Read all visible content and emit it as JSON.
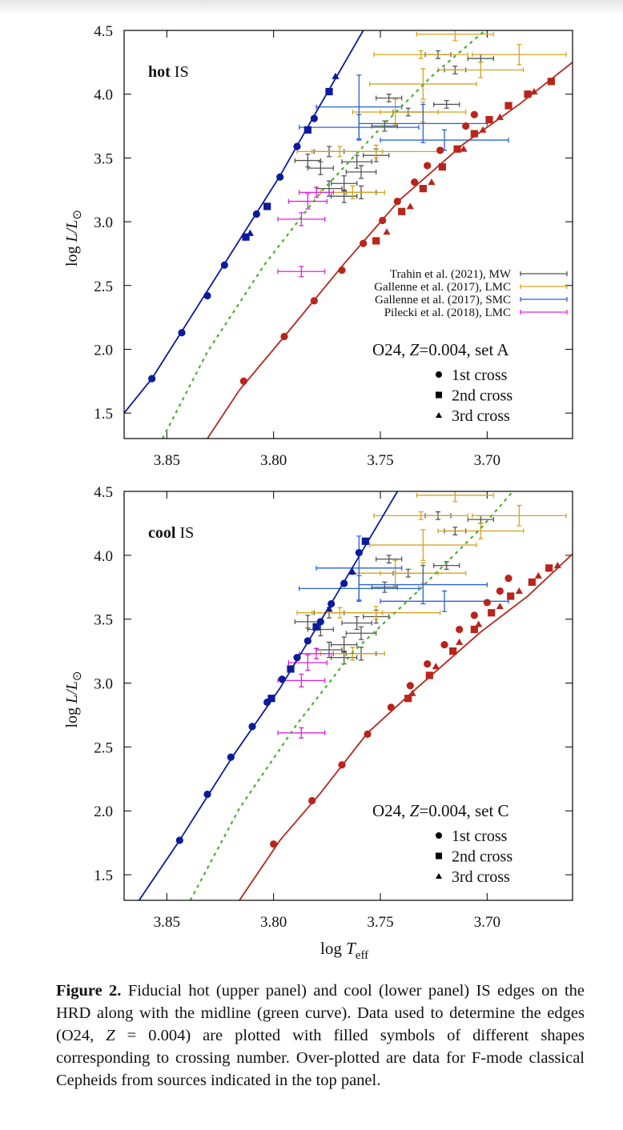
{
  "chart_data": [
    {
      "type": "scatter",
      "panel_label": [
        "hot",
        "IS"
      ],
      "annotation": [
        "O24, ",
        "Z",
        "=0.004, set A"
      ],
      "ylabel": [
        "log ",
        "L",
        "/L",
        "⊙"
      ],
      "xlim": [
        3.87,
        3.66
      ],
      "ylim": [
        1.3,
        4.5
      ],
      "xticks": [
        3.85,
        {
          "value": 3.8,
          "label": "3.80"
        },
        3.75,
        {
          "value": 3.7,
          "label": "3.70"
        }
      ],
      "yticks": [
        {
          "value": 1.5,
          "label": "1.5"
        },
        {
          "value": 2,
          "label": "2.0"
        },
        2.5,
        {
          "value": 3,
          "label": "3.0"
        },
        3.5,
        {
          "value": 4,
          "label": "4.0"
        },
        4.5
      ],
      "markers": [
        {
          "label": "1st cross",
          "shape": "circle"
        },
        {
          "label": "2nd cross",
          "shape": "square"
        },
        {
          "label": "3rd cross",
          "shape": "triangle"
        }
      ],
      "lines": [
        {
          "color": "#0c1a9c",
          "style": "solid",
          "x": [
            3.87,
            3.857,
            3.823,
            3.797,
            3.778,
            3.758
          ],
          "y": [
            1.5,
            1.77,
            2.67,
            3.36,
            3.92,
            4.5
          ]
        },
        {
          "color": "#4caf2a",
          "style": "dotted",
          "x": [
            3.852,
            3.831,
            3.804,
            3.778,
            3.748,
            3.726,
            3.701
          ],
          "y": [
            1.3,
            1.98,
            2.67,
            3.23,
            3.77,
            4.14,
            4.5
          ]
        },
        {
          "color": "#b5281c",
          "style": "solid",
          "x": [
            3.831,
            3.816,
            3.795,
            3.767,
            3.741,
            3.711,
            3.685,
            3.66
          ],
          "y": [
            1.3,
            1.68,
            2.1,
            2.67,
            3.17,
            3.61,
            3.92,
            4.25
          ]
        }
      ],
      "points": [
        {
          "color": "#0c1a9c",
          "shape": "circle",
          "x": [
            3.857,
            3.843,
            3.831,
            3.823,
            3.808,
            3.797,
            3.789,
            3.781
          ],
          "y": [
            1.77,
            2.13,
            2.42,
            2.66,
            3.06,
            3.35,
            3.59,
            3.81
          ]
        },
        {
          "color": "#0c1a9c",
          "shape": "square",
          "x": [
            3.813,
            3.803,
            3.784,
            3.774
          ],
          "y": [
            2.88,
            3.12,
            3.72,
            4.02
          ]
        },
        {
          "color": "#0c1a9c",
          "shape": "triangle",
          "x": [
            3.811,
            3.771
          ],
          "y": [
            2.91,
            4.14
          ]
        },
        {
          "color": "#b8251c",
          "shape": "circle",
          "x": [
            3.814,
            3.795,
            3.781,
            3.768,
            3.758,
            3.749,
            3.742,
            3.734,
            3.728,
            3.722,
            3.71,
            3.706
          ],
          "y": [
            1.75,
            2.1,
            2.38,
            2.62,
            2.83,
            3.01,
            3.16,
            3.31,
            3.44,
            3.56,
            3.75,
            3.84
          ]
        },
        {
          "color": "#b8251c",
          "shape": "square",
          "x": [
            3.752,
            3.74,
            3.73,
            3.721,
            3.714,
            3.706,
            3.699,
            3.69,
            3.681,
            3.67
          ],
          "y": [
            2.85,
            3.08,
            3.26,
            3.43,
            3.57,
            3.69,
            3.8,
            3.91,
            4.0,
            4.1
          ]
        },
        {
          "color": "#b8251c",
          "shape": "triangle",
          "x": [
            3.747,
            3.736,
            3.726,
            3.711,
            3.702,
            3.694,
            3.678
          ],
          "y": [
            2.92,
            3.12,
            3.31,
            3.57,
            3.72,
            3.82,
            4.02
          ]
        }
      ],
      "errorbars": [
        {
          "name": "Trahin et al. (2021), MW",
          "color": "#555555",
          "x": [
            3.723,
            3.703,
            3.715,
            3.746,
            3.737,
            3.719,
            3.748,
            3.774,
            3.752,
            3.778,
            3.759,
            3.767,
            3.774,
            3.759,
            3.767,
            3.761,
            3.784
          ],
          "y": [
            4.31,
            4.28,
            4.19,
            3.97,
            3.86,
            3.92,
            3.75,
            3.55,
            3.52,
            3.42,
            3.39,
            3.3,
            3.26,
            3.23,
            3.2,
            3.47,
            3.48
          ],
          "xerr": [
            0.006,
            0.006,
            0.005,
            0.006,
            0.007,
            0.006,
            0.006,
            0.007,
            0.006,
            0.006,
            0.007,
            0.006,
            0.006,
            0.007,
            0.006,
            0.007,
            0.006
          ],
          "yerr": [
            0.03,
            0.03,
            0.03,
            0.03,
            0.03,
            0.03,
            0.04,
            0.04,
            0.05,
            0.05,
            0.05,
            0.06,
            0.06,
            0.05,
            0.05,
            0.05,
            0.05
          ]
        },
        {
          "name": "Gallenne et al. (2017), LMC",
          "color": "#d4a520",
          "x": [
            3.715,
            3.731,
            3.685,
            3.703,
            3.73,
            3.743,
            3.752,
            3.769,
            3.763,
            3.73
          ],
          "y": [
            4.47,
            4.31,
            4.31,
            4.19,
            4.08,
            3.86,
            3.55,
            3.55,
            3.23,
            3.86
          ],
          "xerr": [
            0.018,
            0.022,
            0.022,
            0.02,
            0.025,
            0.02,
            0.03,
            0.02,
            0.015,
            0.02
          ],
          "yerr": [
            0.05,
            0.03,
            0.08,
            0.06,
            0.12,
            0.1,
            0.05,
            0.04,
            0.05,
            0.08
          ]
        },
        {
          "name": "Gallenne et al. (2017), SMC",
          "color": "#2a62d8",
          "x": [
            3.76,
            3.76,
            3.72,
            3.73
          ],
          "y": [
            3.9,
            3.74,
            3.64,
            3.77
          ],
          "xerr": [
            0.02,
            0.028,
            0.03,
            0.03
          ],
          "yerr": [
            0.25,
            0.1,
            0.08,
            0.15
          ]
        },
        {
          "name": "Pilecki et al. (2018), LMC",
          "color": "#e020e0",
          "x": [
            3.787,
            3.787,
            3.784,
            3.78
          ],
          "y": [
            3.02,
            2.61,
            3.16,
            3.23
          ],
          "xerr": [
            0.011,
            0.011,
            0.009,
            0.008
          ],
          "yerr": [
            0.05,
            0.04,
            0.06,
            0.04
          ]
        }
      ]
    },
    {
      "type": "scatter",
      "panel_label": [
        "cool",
        "IS"
      ],
      "annotation": [
        "O24, ",
        "Z",
        "=0.004, set C"
      ],
      "ylabel": [
        "log ",
        "L",
        "/L",
        "⊙"
      ],
      "xlabel": [
        "log ",
        "T",
        "eff"
      ],
      "xlim": [
        3.87,
        3.66
      ],
      "ylim": [
        1.3,
        4.5
      ],
      "xticks": [
        3.85,
        {
          "value": 3.8,
          "label": "3.80"
        },
        3.75,
        {
          "value": 3.7,
          "label": "3.70"
        }
      ],
      "yticks": [
        {
          "value": 1.5,
          "label": "1.5"
        },
        {
          "value": 2,
          "label": "2.0"
        },
        2.5,
        {
          "value": 3,
          "label": "3.0"
        },
        3.5,
        {
          "value": 4,
          "label": "4.0"
        },
        4.5
      ],
      "markers": [
        {
          "label": "1st cross",
          "shape": "circle"
        },
        {
          "label": "2nd cross",
          "shape": "square"
        },
        {
          "label": "3rd cross",
          "shape": "triangle"
        }
      ],
      "lines": [
        {
          "color": "#0c1a9c",
          "style": "solid",
          "x": [
            3.863,
            3.844,
            3.819,
            3.797,
            3.771,
            3.742
          ],
          "y": [
            1.3,
            1.77,
            2.43,
            2.96,
            3.68,
            4.5
          ]
        },
        {
          "color": "#4caf2a",
          "style": "dotted",
          "x": [
            3.839,
            3.816,
            3.789,
            3.763,
            3.733,
            3.703,
            3.688
          ],
          "y": [
            1.3,
            2.02,
            2.68,
            3.24,
            3.71,
            4.21,
            4.5
          ]
        },
        {
          "color": "#b5281c",
          "style": "solid",
          "x": [
            3.816,
            3.797,
            3.778,
            3.756,
            3.733,
            3.703,
            3.681,
            3.66
          ],
          "y": [
            1.3,
            1.77,
            2.14,
            2.61,
            2.96,
            3.4,
            3.68,
            4.01
          ]
        }
      ],
      "points": [
        {
          "color": "#0c1a9c",
          "shape": "circle",
          "x": [
            3.844,
            3.831,
            3.82,
            3.81,
            3.803,
            3.796,
            3.789,
            3.784,
            3.778,
            3.773,
            3.767,
            3.76
          ],
          "y": [
            1.77,
            2.13,
            2.42,
            2.66,
            2.85,
            3.03,
            3.2,
            3.33,
            3.48,
            3.62,
            3.78,
            4.02
          ]
        },
        {
          "color": "#0c1a9c",
          "shape": "square",
          "x": [
            3.801,
            3.792,
            3.78,
            3.757
          ],
          "y": [
            2.88,
            3.11,
            3.44,
            4.11
          ]
        },
        {
          "color": "#0c1a9c",
          "shape": "triangle",
          "x": [
            3.774,
            3.763
          ],
          "y": [
            3.58,
            3.87
          ]
        },
        {
          "color": "#b8251c",
          "shape": "circle",
          "x": [
            3.8,
            3.782,
            3.768,
            3.756,
            3.745,
            3.736,
            3.728,
            3.72,
            3.713,
            3.706,
            3.7,
            3.694,
            3.69
          ],
          "y": [
            1.74,
            2.08,
            2.36,
            2.6,
            2.81,
            2.98,
            3.15,
            3.3,
            3.42,
            3.53,
            3.63,
            3.72,
            3.82
          ]
        },
        {
          "color": "#b8251c",
          "shape": "square",
          "x": [
            3.737,
            3.727,
            3.716,
            3.706,
            3.698,
            3.689,
            3.679,
            3.671
          ],
          "y": [
            2.88,
            3.06,
            3.25,
            3.42,
            3.55,
            3.68,
            3.79,
            3.9
          ]
        },
        {
          "color": "#b8251c",
          "shape": "triangle",
          "x": [
            3.735,
            3.724,
            3.713,
            3.704,
            3.694,
            3.685,
            3.676,
            3.667
          ],
          "y": [
            2.92,
            3.13,
            3.32,
            3.46,
            3.6,
            3.72,
            3.84,
            3.92
          ]
        }
      ],
      "errorbars": [
        {
          "color": "#555555",
          "x": [
            3.723,
            3.703,
            3.715,
            3.746,
            3.737,
            3.719,
            3.748,
            3.774,
            3.752,
            3.778,
            3.759,
            3.767,
            3.774,
            3.759,
            3.767,
            3.761,
            3.784
          ],
          "y": [
            4.31,
            4.28,
            4.19,
            3.97,
            3.86,
            3.92,
            3.75,
            3.55,
            3.52,
            3.42,
            3.39,
            3.3,
            3.26,
            3.23,
            3.2,
            3.47,
            3.48
          ],
          "xerr": [
            0.006,
            0.006,
            0.005,
            0.006,
            0.007,
            0.006,
            0.006,
            0.007,
            0.006,
            0.006,
            0.007,
            0.006,
            0.006,
            0.007,
            0.006,
            0.007,
            0.006
          ],
          "yerr": [
            0.03,
            0.03,
            0.03,
            0.03,
            0.03,
            0.03,
            0.04,
            0.04,
            0.05,
            0.05,
            0.05,
            0.06,
            0.06,
            0.05,
            0.05,
            0.05,
            0.05
          ]
        },
        {
          "color": "#d4a520",
          "x": [
            3.715,
            3.731,
            3.685,
            3.703,
            3.73,
            3.743,
            3.752,
            3.769,
            3.763,
            3.73
          ],
          "y": [
            4.47,
            4.31,
            4.31,
            4.19,
            4.08,
            3.86,
            3.55,
            3.55,
            3.23,
            3.86
          ],
          "xerr": [
            0.018,
            0.022,
            0.022,
            0.02,
            0.025,
            0.02,
            0.03,
            0.02,
            0.015,
            0.02
          ],
          "yerr": [
            0.05,
            0.03,
            0.08,
            0.06,
            0.12,
            0.1,
            0.05,
            0.04,
            0.05,
            0.08
          ]
        },
        {
          "color": "#2a62d8",
          "x": [
            3.76,
            3.76,
            3.72,
            3.73
          ],
          "y": [
            3.9,
            3.74,
            3.64,
            3.77
          ],
          "xerr": [
            0.02,
            0.028,
            0.03,
            0.03
          ],
          "yerr": [
            0.25,
            0.1,
            0.08,
            0.15
          ]
        },
        {
          "color": "#e020e0",
          "x": [
            3.787,
            3.787,
            3.784,
            3.78
          ],
          "y": [
            3.02,
            2.61,
            3.16,
            3.23
          ],
          "xerr": [
            0.011,
            0.011,
            0.009,
            0.008
          ],
          "yerr": [
            0.05,
            0.04,
            0.06,
            0.04
          ]
        }
      ]
    }
  ],
  "caption": {
    "label": "Figure 2.",
    "parts": [
      "Fiducial hot (upper panel) and cool (lower panel) IS edges on the HRD along with the midline (green curve). Data used to determine the edges (O24, ",
      "Z",
      " = 0.004) are plotted with filled symbols of different shapes corresponding to crossing number. Over-plotted are data for F-mode classical Cepheids from sources indicated in the top panel."
    ]
  }
}
